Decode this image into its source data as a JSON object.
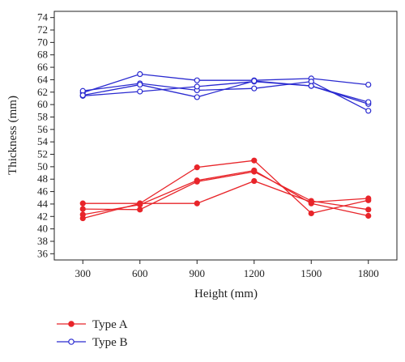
{
  "chart_data": {
    "type": "line",
    "title": "",
    "xlabel": "Height (mm)",
    "ylabel": "Thickness (mm)",
    "x": [
      300,
      600,
      900,
      1200,
      1500,
      1800
    ],
    "x_ticks": [
      "300",
      "600",
      "900",
      "1200",
      "1500",
      "1800"
    ],
    "xlim": [
      150,
      1950
    ],
    "ylim": [
      35,
      75
    ],
    "y_ticks": [
      36,
      38,
      40,
      42,
      44,
      46,
      48,
      50,
      52,
      54,
      56,
      58,
      60,
      62,
      64,
      66,
      68,
      70,
      72,
      74
    ],
    "grid": false,
    "legend_position": "bottom-left",
    "legend": [
      {
        "label": "Type A",
        "marker": "filled-circle",
        "color": "#e8252a"
      },
      {
        "label": "Type B",
        "marker": "open-circle",
        "color": "#2a2ad0"
      }
    ],
    "series": [
      {
        "group": "Type A",
        "color": "#e8252a",
        "marker": "filled",
        "values": [
          44.1,
          44.1,
          44.1,
          47.7,
          44.3,
          44.9
        ]
      },
      {
        "group": "Type A",
        "color": "#e8252a",
        "marker": "filled",
        "values": [
          43.2,
          43.1,
          47.6,
          49.2,
          44.5,
          43.1
        ]
      },
      {
        "group": "Type A",
        "color": "#e8252a",
        "marker": "filled",
        "values": [
          41.7,
          44.1,
          49.9,
          51.0,
          42.5,
          44.6
        ]
      },
      {
        "group": "Type A",
        "color": "#e8252a",
        "marker": "filled",
        "values": [
          42.3,
          43.9,
          47.8,
          49.4,
          44.1,
          42.1
        ]
      },
      {
        "group": "Type B",
        "color": "#2a2ad0",
        "marker": "open",
        "values": [
          61.9,
          64.9,
          63.9,
          63.9,
          64.2,
          63.2
        ]
      },
      {
        "group": "Type B",
        "color": "#2a2ad0",
        "marker": "open",
        "values": [
          62.2,
          63.4,
          62.3,
          62.6,
          63.7,
          59.0
        ]
      },
      {
        "group": "Type B",
        "color": "#2a2ad0",
        "marker": "open",
        "values": [
          61.4,
          62.1,
          62.9,
          63.7,
          63.0,
          60.1
        ]
      },
      {
        "group": "Type B",
        "color": "#2a2ad0",
        "marker": "open",
        "values": [
          61.5,
          63.2,
          61.2,
          63.8,
          63.0,
          60.4
        ]
      }
    ]
  }
}
